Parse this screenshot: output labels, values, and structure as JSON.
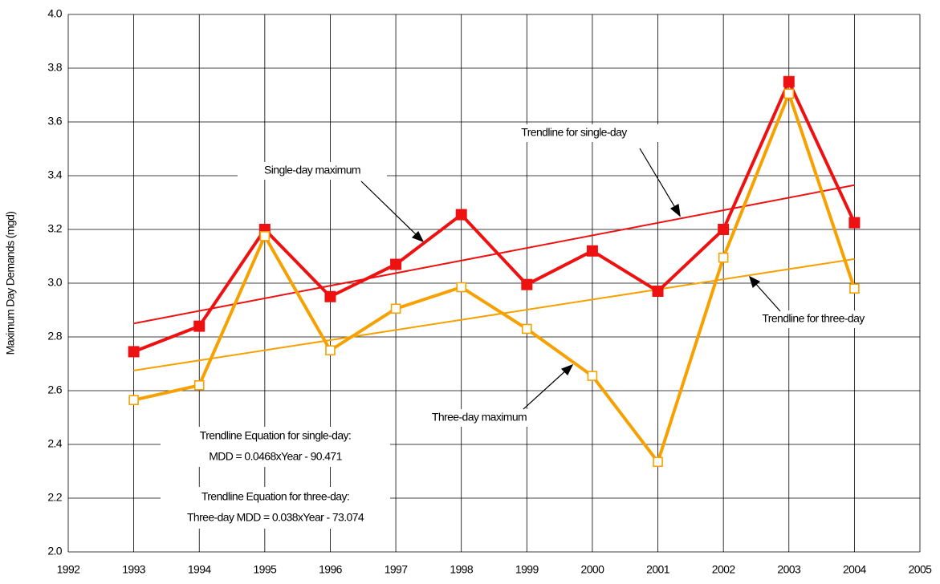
{
  "chart_data": {
    "type": "line",
    "ylabel": "Maximum Day Demands (mgd)",
    "x": [
      1993,
      1994,
      1995,
      1996,
      1997,
      1998,
      1999,
      2000,
      2001,
      2002,
      2003,
      2004
    ],
    "series": [
      {
        "name": "Single-day maximum",
        "color": "#ee1111",
        "marker": "filled-square",
        "values": [
          2.745,
          2.84,
          3.2,
          2.95,
          3.07,
          3.255,
          2.995,
          3.12,
          2.97,
          3.2,
          3.75,
          3.225
        ]
      },
      {
        "name": "Three-day maximum",
        "color": "#f7a100",
        "marker": "open-square",
        "values": [
          2.565,
          2.62,
          3.175,
          2.75,
          2.905,
          2.985,
          2.83,
          2.655,
          2.335,
          3.095,
          3.705,
          2.98
        ]
      },
      {
        "name": "Trendline for single-day",
        "color": "#ee1111",
        "x": [
          1993,
          2004
        ],
        "values": [
          2.85,
          3.365
        ]
      },
      {
        "name": "Trendline for three-day",
        "color": "#f7a100",
        "x": [
          1993,
          2004
        ],
        "values": [
          2.675,
          3.09
        ]
      }
    ],
    "annotations": [
      "Trendline Equation for single-day:",
      "MDD = 0.0468xYear - 90.471",
      "Trendline Equation for three-day:",
      "Three-day MDD = 0.038xYear - 73.074"
    ],
    "xlim": [
      1992,
      2005
    ],
    "xticks": [
      1992,
      1993,
      1994,
      1995,
      1996,
      1997,
      1998,
      1999,
      2000,
      2001,
      2002,
      2003,
      2004,
      2005
    ],
    "ylim": [
      2,
      4
    ],
    "yticks": [
      {
        "value": 2,
        "label": "2.0"
      },
      2.2,
      2.4,
      2.6,
      2.8,
      {
        "value": 3,
        "label": "3.0"
      },
      3.2,
      3.4,
      3.6,
      3.8,
      {
        "value": 4,
        "label": "4.0"
      }
    ],
    "grid": true
  }
}
